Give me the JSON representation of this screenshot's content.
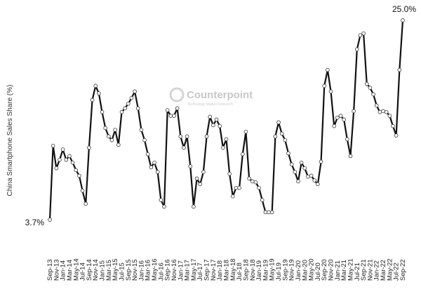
{
  "chart_data": {
    "type": "line",
    "y_label": "China Smartphone  Sales Share (%)",
    "watermark": "Counterpoint",
    "watermark_subtitle": "Technology Market Research",
    "color": "#111111",
    "categories": [
      "Sep-13",
      null,
      "Nov-13",
      null,
      "Jan-14",
      null,
      "Mar-14",
      null,
      "May-14",
      null,
      "Jul-14",
      null,
      "Sep-14",
      null,
      "Nov-14",
      null,
      "Jan-15",
      null,
      "Mar-15",
      null,
      "May-15",
      null,
      "Jul-15",
      null,
      "Sep-15",
      null,
      "Nov-15",
      null,
      "Jan-16",
      null,
      "Mar-16",
      null,
      "May-16",
      null,
      "Jul-16",
      null,
      "Sep-16",
      null,
      "Nov-16",
      null,
      "Jan-17",
      null,
      "Mar-17",
      null,
      "May-17",
      null,
      "Jul-17",
      null,
      "Sep-17",
      null,
      "Nov-17",
      null,
      "Jan-18",
      null,
      "Mar-18",
      null,
      "May-18",
      null,
      "Jul-18",
      null,
      "Sep-18",
      null,
      "Nov-18",
      null,
      "Jan-19",
      null,
      "Mar-19",
      null,
      "May-19",
      null,
      "Jul-19",
      null,
      "Sep-19",
      null,
      "Nov-19",
      null,
      "Jan-20",
      null,
      "Mar-20",
      null,
      "May-20",
      null,
      "Jul-20",
      null,
      "Sep-20",
      null,
      "Nov-20",
      null,
      "Jan-21",
      null,
      "Mar-21",
      null,
      "May-21",
      null,
      "Jul-21",
      null,
      "Sep-21",
      null,
      "Nov-21",
      null,
      "Jan-22",
      null,
      "Mar-22",
      null,
      "May-22",
      null,
      "Jul-22",
      null,
      "Sep-22"
    ],
    "values": [
      3.7,
      11.6,
      9.2,
      10.1,
      11.2,
      10.1,
      10.5,
      9.8,
      9.0,
      8.4,
      6.8,
      5.4,
      11.4,
      16.5,
      18.0,
      17.2,
      15.2,
      13.5,
      12.6,
      12.2,
      13.3,
      11.7,
      15.2,
      15.6,
      16.1,
      16.7,
      17.4,
      15.6,
      13.3,
      12.2,
      10.7,
      9.3,
      9.8,
      8.8,
      5.8,
      5.1,
      15.4,
      14.8,
      14.8,
      15.6,
      12.6,
      11.4,
      12.6,
      9.4,
      5.1,
      8.1,
      7.5,
      8.8,
      12.6,
      14.7,
      13.8,
      14.4,
      13.7,
      11.4,
      12.3,
      8.6,
      6.2,
      7.1,
      7.1,
      10.7,
      13.1,
      8.1,
      7.8,
      7.7,
      7.1,
      5.8,
      4.5,
      4.5,
      4.5,
      12.6,
      14.1,
      12.9,
      12.2,
      10.8,
      9.6,
      8.8,
      7.8,
      9.8,
      9.2,
      8.3,
      8.4,
      7.9,
      7.5,
      9.9,
      18.0,
      19.7,
      17.4,
      13.7,
      14.6,
      14.8,
      14.4,
      12.3,
      10.5,
      15.3,
      21.9,
      23.4,
      23.6,
      18.2,
      17.8,
      17.1,
      15.9,
      15.2,
      15.3,
      15.2,
      14.8,
      13.7,
      12.7,
      19.7,
      25.0
    ],
    "value_labels": [
      "3.7%",
      null,
      null,
      null,
      null,
      null,
      null,
      null,
      null,
      null,
      null,
      null,
      null,
      null,
      null,
      null,
      null,
      null,
      null,
      null,
      null,
      null,
      null,
      null,
      null,
      null,
      null,
      null,
      null,
      null,
      null,
      null,
      null,
      null,
      null,
      null,
      null,
      null,
      null,
      null,
      null,
      null,
      null,
      null,
      null,
      null,
      null,
      null,
      null,
      null,
      null,
      null,
      null,
      null,
      null,
      null,
      null,
      null,
      null,
      null,
      null,
      null,
      null,
      null,
      null,
      null,
      null,
      null,
      null,
      null,
      null,
      null,
      null,
      null,
      null,
      null,
      null,
      null,
      null,
      null,
      null,
      null,
      null,
      null,
      null,
      null,
      null,
      null,
      null,
      null,
      null,
      null,
      null,
      null,
      null,
      null,
      null,
      null,
      null,
      null,
      null,
      null,
      null,
      null,
      null,
      null,
      null,
      null,
      "25.0%"
    ],
    "ylim": [
      2,
      27
    ]
  }
}
